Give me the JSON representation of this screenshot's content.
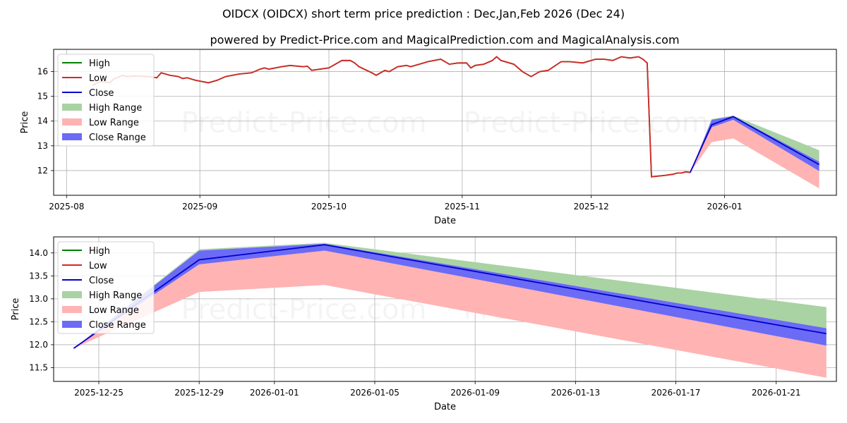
{
  "title": "OIDCX (OIDCX) short term price prediction : Dec,Jan,Feb 2026 (Dec 24)",
  "subtitle": "powered by Predict-Price.com and MagicalPrediction.com and MagicalAnalysis.com",
  "watermark": "Predict-Price.com",
  "colors": {
    "high": "#008000",
    "low": "#d62728",
    "close": "#0000cc",
    "high_range": "#a9d3a2",
    "low_range": "#ffb3b3",
    "close_range": "#6b6bf5",
    "grid": "#b0b0b0"
  },
  "chart_data": [
    {
      "type": "line",
      "xlabel": "Date",
      "ylabel": "Price",
      "xlim": [
        "2025-07-29",
        "2026-01-27"
      ],
      "ylim": [
        11.0,
        16.9
      ],
      "grid": true,
      "legend_position": "top-left",
      "legend": [
        "High",
        "Low",
        "Close",
        "High Range",
        "Low Range",
        "Close Range"
      ],
      "x_ticks": [
        "2025-08",
        "2025-09",
        "2025-10",
        "2025-11",
        "2025-12",
        "2026-01"
      ],
      "y_ticks": [
        12,
        13,
        14,
        15,
        16
      ],
      "history": {
        "dates": [
          "2025-08-07",
          "2025-08-09",
          "2025-08-11",
          "2025-08-12",
          "2025-08-14",
          "2025-08-15",
          "2025-08-17",
          "2025-08-20",
          "2025-08-22",
          "2025-08-23",
          "2025-08-25",
          "2025-08-27",
          "2025-08-28",
          "2025-08-29",
          "2025-08-31",
          "2025-09-03",
          "2025-09-05",
          "2025-09-07",
          "2025-09-10",
          "2025-09-13",
          "2025-09-15",
          "2025-09-16",
          "2025-09-17",
          "2025-09-20",
          "2025-09-22",
          "2025-09-25",
          "2025-09-26",
          "2025-09-27",
          "2025-10-01",
          "2025-10-04",
          "2025-10-06",
          "2025-10-07",
          "2025-10-08",
          "2025-10-11",
          "2025-10-12",
          "2025-10-13",
          "2025-10-14",
          "2025-10-15",
          "2025-10-17",
          "2025-10-19",
          "2025-10-20",
          "2025-10-22",
          "2025-10-24",
          "2025-10-27",
          "2025-10-29",
          "2025-10-31",
          "2025-11-02",
          "2025-11-03",
          "2025-11-04",
          "2025-11-06",
          "2025-11-08",
          "2025-11-09",
          "2025-11-10",
          "2025-11-13",
          "2025-11-15",
          "2025-11-17",
          "2025-11-19",
          "2025-11-21",
          "2025-11-24",
          "2025-11-26",
          "2025-11-29",
          "2025-12-02",
          "2025-12-04",
          "2025-12-06",
          "2025-12-08",
          "2025-12-10",
          "2025-12-12",
          "2025-12-13",
          "2025-12-14",
          "2025-12-15",
          "2025-12-18",
          "2025-12-20",
          "2025-12-21",
          "2025-12-22",
          "2025-12-23",
          "2025-12-24"
        ],
        "values": [
          15.45,
          15.6,
          15.55,
          15.7,
          15.85,
          15.8,
          15.82,
          15.8,
          15.75,
          15.95,
          15.85,
          15.8,
          15.72,
          15.75,
          15.65,
          15.55,
          15.65,
          15.8,
          15.9,
          15.95,
          16.1,
          16.15,
          16.1,
          16.2,
          16.25,
          16.2,
          16.22,
          16.05,
          16.15,
          16.45,
          16.45,
          16.35,
          16.2,
          15.95,
          15.85,
          15.95,
          16.05,
          16.0,
          16.2,
          16.25,
          16.2,
          16.3,
          16.4,
          16.5,
          16.3,
          16.35,
          16.35,
          16.15,
          16.25,
          16.3,
          16.45,
          16.6,
          16.45,
          16.3,
          16.0,
          15.8,
          16.0,
          16.05,
          16.4,
          16.4,
          16.35,
          16.5,
          16.5,
          16.45,
          16.6,
          16.55,
          16.6,
          16.5,
          16.35,
          11.75,
          11.8,
          11.85,
          11.9,
          11.9,
          11.95,
          11.92
        ]
      },
      "forecast": {
        "dates": [
          "2025-12-24",
          "2025-12-29",
          "2026-01-03",
          "2026-01-23"
        ],
        "close": [
          11.92,
          13.85,
          14.18,
          12.24
        ],
        "high": [
          11.92,
          14.08,
          14.22,
          12.82
        ],
        "low": [
          11.92,
          13.15,
          13.3,
          11.28
        ],
        "close_upper": [
          11.92,
          14.05,
          14.2,
          12.36
        ],
        "close_lower": [
          11.92,
          13.75,
          14.05,
          11.98
        ]
      }
    },
    {
      "type": "line",
      "xlabel": "Date",
      "ylabel": "Price",
      "xlim": [
        "2025-12-23.2",
        "2026-01-23.4"
      ],
      "ylim": [
        11.2,
        14.35
      ],
      "grid": true,
      "legend_position": "top-left",
      "legend": [
        "High",
        "Low",
        "Close",
        "High Range",
        "Low Range",
        "Close Range"
      ],
      "x_ticks": [
        "2025-12-25",
        "2025-12-29",
        "2026-01-01",
        "2026-01-05",
        "2026-01-09",
        "2026-01-13",
        "2026-01-17",
        "2026-01-21"
      ],
      "y_ticks": [
        "11.5",
        "12.0",
        "12.5",
        "13.0",
        "13.5",
        "14.0"
      ]
    }
  ]
}
